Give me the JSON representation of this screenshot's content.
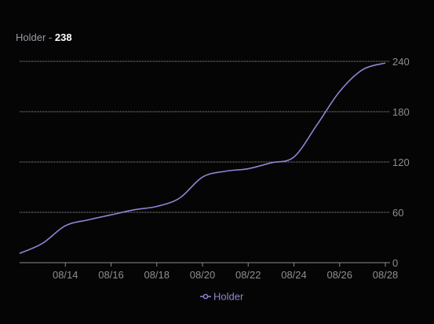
{
  "header": {
    "metric_name": "Holder",
    "separator": "-",
    "metric_value": "238"
  },
  "colors": {
    "background": "#050505",
    "series_line": "#8b86d4",
    "grid": "#9a9a9a",
    "tick_text": "#8e8e8e"
  },
  "chart_data": {
    "type": "line",
    "title": "",
    "xlabel": "",
    "ylabel": "",
    "ylim": [
      0,
      240
    ],
    "yticks": [
      0,
      60,
      120,
      180,
      240
    ],
    "y_axis_side": "right",
    "grid": true,
    "legend": "bottom-center",
    "xticks": [
      "08/14",
      "08/16",
      "08/18",
      "08/20",
      "08/22",
      "08/24",
      "08/26",
      "08/28"
    ],
    "x": [
      "08/12",
      "08/13",
      "08/14",
      "08/15",
      "08/16",
      "08/17",
      "08/18",
      "08/19",
      "08/20",
      "08/21",
      "08/22",
      "08/23",
      "08/24",
      "08/25",
      "08/26",
      "08/27",
      "08/28"
    ],
    "series": [
      {
        "name": "Holder",
        "values": [
          11,
          23,
          44,
          51,
          57,
          63,
          67,
          77,
          102,
          109,
          112,
          119,
          126,
          164,
          204,
          230,
          238
        ]
      }
    ]
  }
}
